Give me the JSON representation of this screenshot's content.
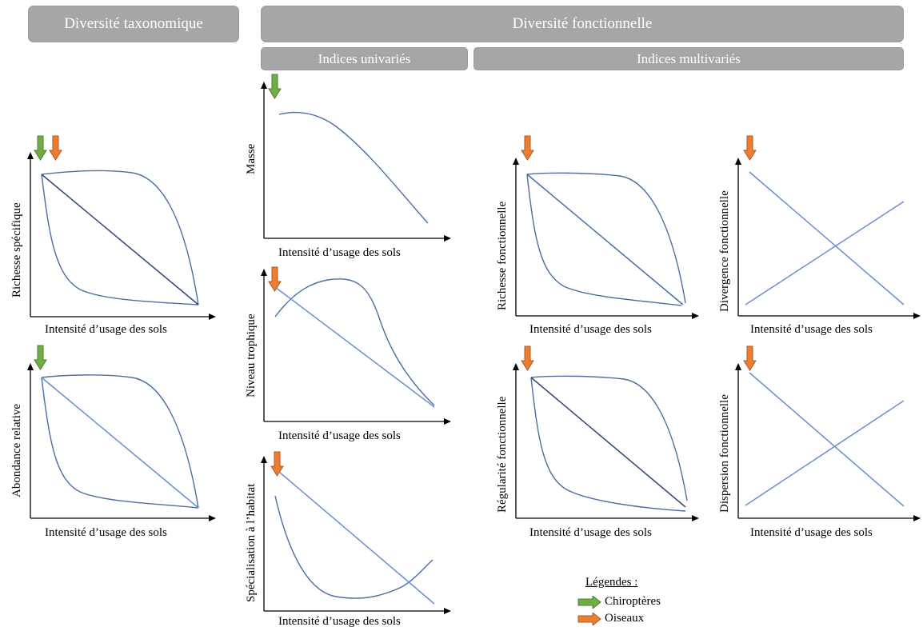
{
  "headers": {
    "taxonomic": "Diversité taxonomique",
    "functional": "Diversité fonctionnelle",
    "univariate": "Indices univariés",
    "multivariate": "Indices multivariés"
  },
  "x_axis_label": "Intensité d’usage des sols",
  "panels": {
    "richesse_specifique": {
      "ylabel": "Richesse spécifique",
      "arrows": [
        "green",
        "orange"
      ]
    },
    "abondance_relative": {
      "ylabel": "Abondance relative",
      "arrows": [
        "green"
      ]
    },
    "masse": {
      "ylabel": "Masse",
      "arrows": [
        "green"
      ]
    },
    "niveau_trophique": {
      "ylabel": "Niveau trophique",
      "arrows": [
        "orange"
      ]
    },
    "specialisation_habitat": {
      "ylabel": "Spécialisation à l’habitat",
      "arrows": [
        "orange"
      ]
    },
    "richesse_fonctionnelle": {
      "ylabel": "Richesse fonctionnelle",
      "arrows": [
        "orange"
      ]
    },
    "divergence_fonctionnelle": {
      "ylabel": "Divergence fonctionnelle",
      "arrows": [
        "orange"
      ]
    },
    "regularite_fonctionnelle": {
      "ylabel": "Régularité fonctionnelle",
      "arrows": [
        "orange"
      ]
    },
    "dispersion_fonctionnelle": {
      "ylabel": "Dispersion fonctionnelle",
      "arrows": [
        "orange"
      ]
    }
  },
  "legend": {
    "title": "Légendes :",
    "items": [
      {
        "label": "Chiroptères",
        "color": "#70ad47"
      },
      {
        "label": "Oiseaux",
        "color": "#ed7d31"
      }
    ]
  },
  "colors": {
    "header_bg": "#a6a6a6",
    "curve": "#4a6fa5",
    "line_light": "#6a8fd0",
    "line_dark": "#2f4a78",
    "green_arrow": "#70ad47",
    "orange_arrow": "#ed7d31"
  }
}
